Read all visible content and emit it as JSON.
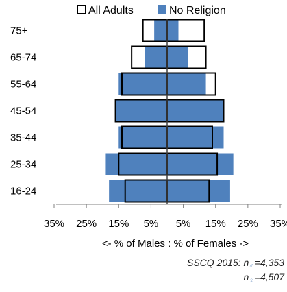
{
  "chart_data": {
    "type": "bar",
    "orientation": "horizontal",
    "layout": "population-pyramid",
    "categories": [
      "16-24",
      "25-34",
      "35-44",
      "45-54",
      "55-64",
      "65-74",
      "75+"
    ],
    "series": [
      {
        "name": "All Adults",
        "style": "outline",
        "color": "#000000",
        "males": [
          13,
          15,
          14,
          16,
          14,
          11,
          7.5
        ],
        "females": [
          13,
          15.5,
          14,
          17.5,
          15,
          12,
          11.5
        ]
      },
      {
        "name": "No Religion",
        "style": "filled",
        "color": "#4f81bd",
        "males": [
          18,
          19,
          15,
          16,
          15,
          7,
          4
        ],
        "females": [
          19.5,
          20.5,
          17.5,
          17.5,
          12,
          6.5,
          3.5
        ]
      }
    ],
    "xlabel": "<- % of Males : % of Females ->",
    "ylabel": "",
    "xlim": [
      -35,
      35
    ],
    "x_ticks": [
      -35,
      -25,
      -15,
      -5,
      5,
      15,
      25,
      35
    ],
    "x_tick_labels": [
      "35%",
      "25%",
      "15%",
      "5%",
      "5%",
      "15%",
      "25%",
      "35%"
    ],
    "legend_position": "top",
    "grid": false,
    "annotation": {
      "line1_prefix": "SSCQ 2015: n",
      "line1_sub": "♂",
      "line1_suffix": "=4,353",
      "line2_prefix": "n",
      "line2_sub": "♀",
      "line2_suffix": "=4,507"
    }
  }
}
